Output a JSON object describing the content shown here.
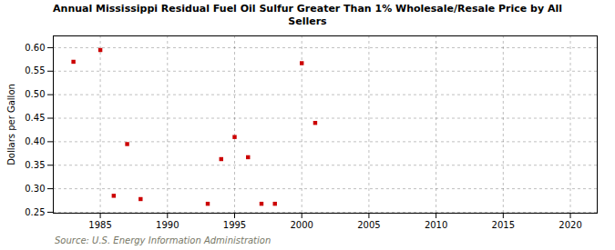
{
  "chart_data": {
    "type": "scatter",
    "title": "Annual Mississippi Residual Fuel Oil Sulfur Greater Than 1% Wholesale/Resale Price by All\nSellers",
    "ylabel": "Dollars per Gallon",
    "annotations": [
      "Source: U.S. Energy Information Administration"
    ],
    "x": [
      1983,
      1985,
      1986,
      1987,
      1988,
      1993,
      1994,
      1995,
      1996,
      1997,
      1998,
      2000,
      2001
    ],
    "values": [
      0.57,
      0.595,
      0.285,
      0.395,
      0.278,
      0.268,
      0.363,
      0.41,
      0.367,
      0.268,
      0.268,
      0.567,
      0.44
    ],
    "color": "#cc0000",
    "marker": "square",
    "xlim": [
      1981.5,
      2022
    ],
    "ylim": [
      0.248,
      0.625
    ],
    "xticks": [
      1985,
      1990,
      1995,
      2000,
      2005,
      2010,
      2015,
      2020
    ],
    "yticks": [
      0.25,
      {
        "value": 0.3,
        "label": "0.30"
      },
      0.35,
      {
        "value": 0.4,
        "label": "0.40"
      },
      0.45,
      {
        "value": 0.5,
        "label": "0.50"
      },
      0.55,
      {
        "value": 0.6,
        "label": "0.60"
      }
    ],
    "grid": true
  }
}
